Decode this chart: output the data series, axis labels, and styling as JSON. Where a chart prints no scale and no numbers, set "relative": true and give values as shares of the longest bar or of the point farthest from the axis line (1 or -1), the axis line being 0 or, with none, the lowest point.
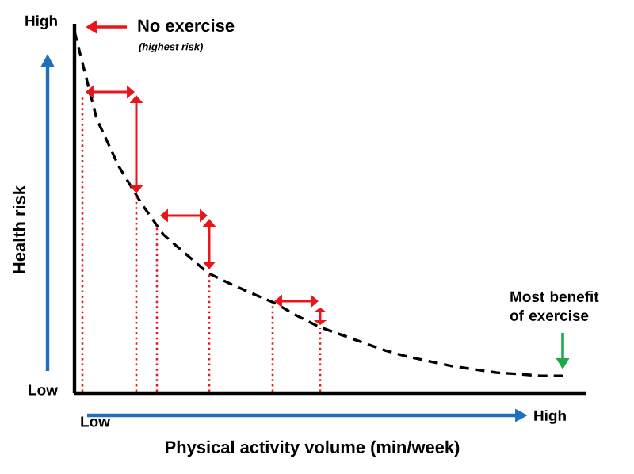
{
  "chart_data": {
    "type": "line",
    "relative": true,
    "xlabel": "Physical activity volume (min/week)",
    "ylabel": "Health risk",
    "categories": [
      null,
      null,
      null,
      null,
      null,
      null,
      null,
      null,
      null,
      null,
      null,
      null,
      null,
      null,
      null,
      null,
      null,
      null,
      null,
      null,
      null,
      null,
      null
    ],
    "series": [
      {
        "color": "#000000",
        "line_style": "dashed",
        "values": [
          1,
          0.759,
          0.627,
          0.526,
          0.439,
          0.386,
          0.333,
          0.303,
          0.276,
          0.25,
          0.215,
          0.184,
          0.162,
          0.14,
          0.118,
          0.101,
          0.088,
          0.075,
          0.066,
          0.057,
          0.053,
          0.048,
          0.048
        ]
      }
    ],
    "annotations": [
      "High",
      "Low",
      "Low",
      "High",
      "No exercise",
      "(highest risk)",
      "Most benefit of exercise"
    ]
  }
}
